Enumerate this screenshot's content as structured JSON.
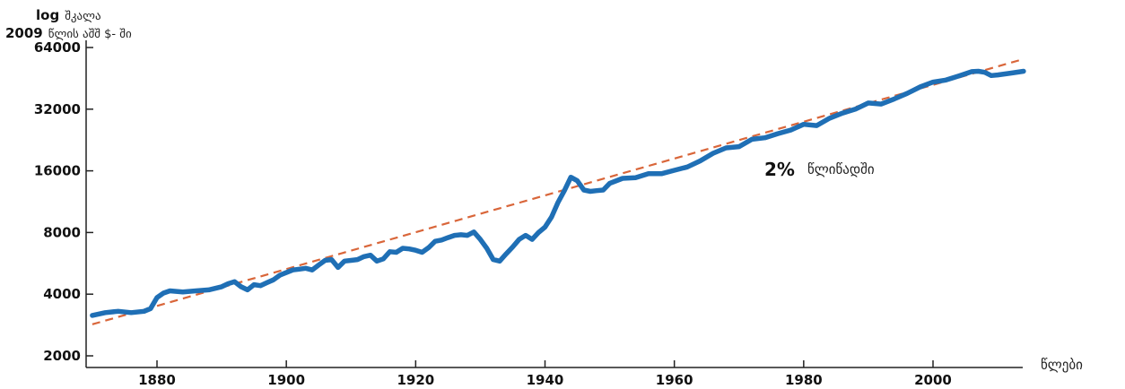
{
  "chart_data": {
    "type": "line",
    "ylabel_line1_bold": "log",
    "ylabel_line1_rest": "შკალა",
    "ylabel_line2_bold": "2009",
    "ylabel_line2_rest": "წლის აშშ $- ში",
    "xlabel": "წლები",
    "annotation_value": "2%",
    "annotation_text": "წლიწადში",
    "y_scale": "log2",
    "ylim": [
      1800,
      68000
    ],
    "xlim": [
      1870,
      2016
    ],
    "y_ticks": [
      2000,
      4000,
      8000,
      16000,
      32000,
      64000
    ],
    "y_tick_labels": [
      "2000",
      "4000",
      "8000",
      "16000",
      "32000",
      "64000"
    ],
    "x_ticks": [
      1880,
      1900,
      1920,
      1940,
      1960,
      1980,
      2000
    ],
    "x_tick_labels": [
      "1880",
      "1900",
      "1920",
      "1940",
      "1960",
      "1980",
      "2000"
    ],
    "series": [
      {
        "color": "#1f6fb5",
        "x": [
          1870,
          1872,
          1874,
          1876,
          1878,
          1879,
          1880,
          1881,
          1882,
          1884,
          1886,
          1888,
          1890,
          1891,
          1892,
          1893,
          1894,
          1895,
          1896,
          1897,
          1898,
          1899,
          1900,
          1901,
          1902,
          1903,
          1904,
          1905,
          1906,
          1907,
          1908,
          1909,
          1910,
          1911,
          1912,
          1913,
          1914,
          1915,
          1916,
          1917,
          1918,
          1919,
          1920,
          1921,
          1922,
          1923,
          1924,
          1925,
          1926,
          1927,
          1928,
          1929,
          1930,
          1931,
          1932,
          1933,
          1934,
          1935,
          1936,
          1937,
          1938,
          1939,
          1940,
          1941,
          1942,
          1943,
          1944,
          1945,
          1946,
          1947,
          1948,
          1949,
          1950,
          1952,
          1954,
          1956,
          1958,
          1960,
          1962,
          1964,
          1966,
          1968,
          1970,
          1972,
          1974,
          1976,
          1978,
          1980,
          1982,
          1984,
          1986,
          1988,
          1990,
          1992,
          1994,
          1996,
          1998,
          2000,
          2002,
          2004,
          2006,
          2007,
          2008,
          2009,
          2010,
          2012,
          2014
        ],
        "y": [
          3150,
          3250,
          3300,
          3250,
          3300,
          3400,
          3850,
          4050,
          4150,
          4100,
          4150,
          4200,
          4350,
          4500,
          4600,
          4350,
          4200,
          4450,
          4400,
          4550,
          4700,
          4950,
          5100,
          5250,
          5300,
          5350,
          5250,
          5550,
          5850,
          5900,
          5400,
          5800,
          5850,
          5900,
          6100,
          6200,
          5800,
          5950,
          6450,
          6400,
          6700,
          6650,
          6550,
          6400,
          6750,
          7250,
          7350,
          7550,
          7750,
          7800,
          7750,
          8050,
          7400,
          6700,
          5900,
          5800,
          6300,
          6800,
          7400,
          7750,
          7400,
          8000,
          8500,
          9500,
          11200,
          12800,
          14900,
          14300,
          12900,
          12700,
          12800,
          12900,
          13900,
          14700,
          14800,
          15500,
          15500,
          16100,
          16700,
          17900,
          19500,
          20700,
          21000,
          22800,
          23200,
          24300,
          25300,
          27000,
          26600,
          28900,
          30600,
          32000,
          34300,
          33900,
          35900,
          38200,
          41100,
          43400,
          44400,
          46500,
          48800,
          49000,
          48400,
          46700,
          47000,
          48000,
          49000
        ]
      }
    ],
    "trend": {
      "color": "#d9663a",
      "rate_percent": 2,
      "x": [
        1870,
        2014
      ],
      "y": [
        2850,
        56200
      ]
    }
  }
}
